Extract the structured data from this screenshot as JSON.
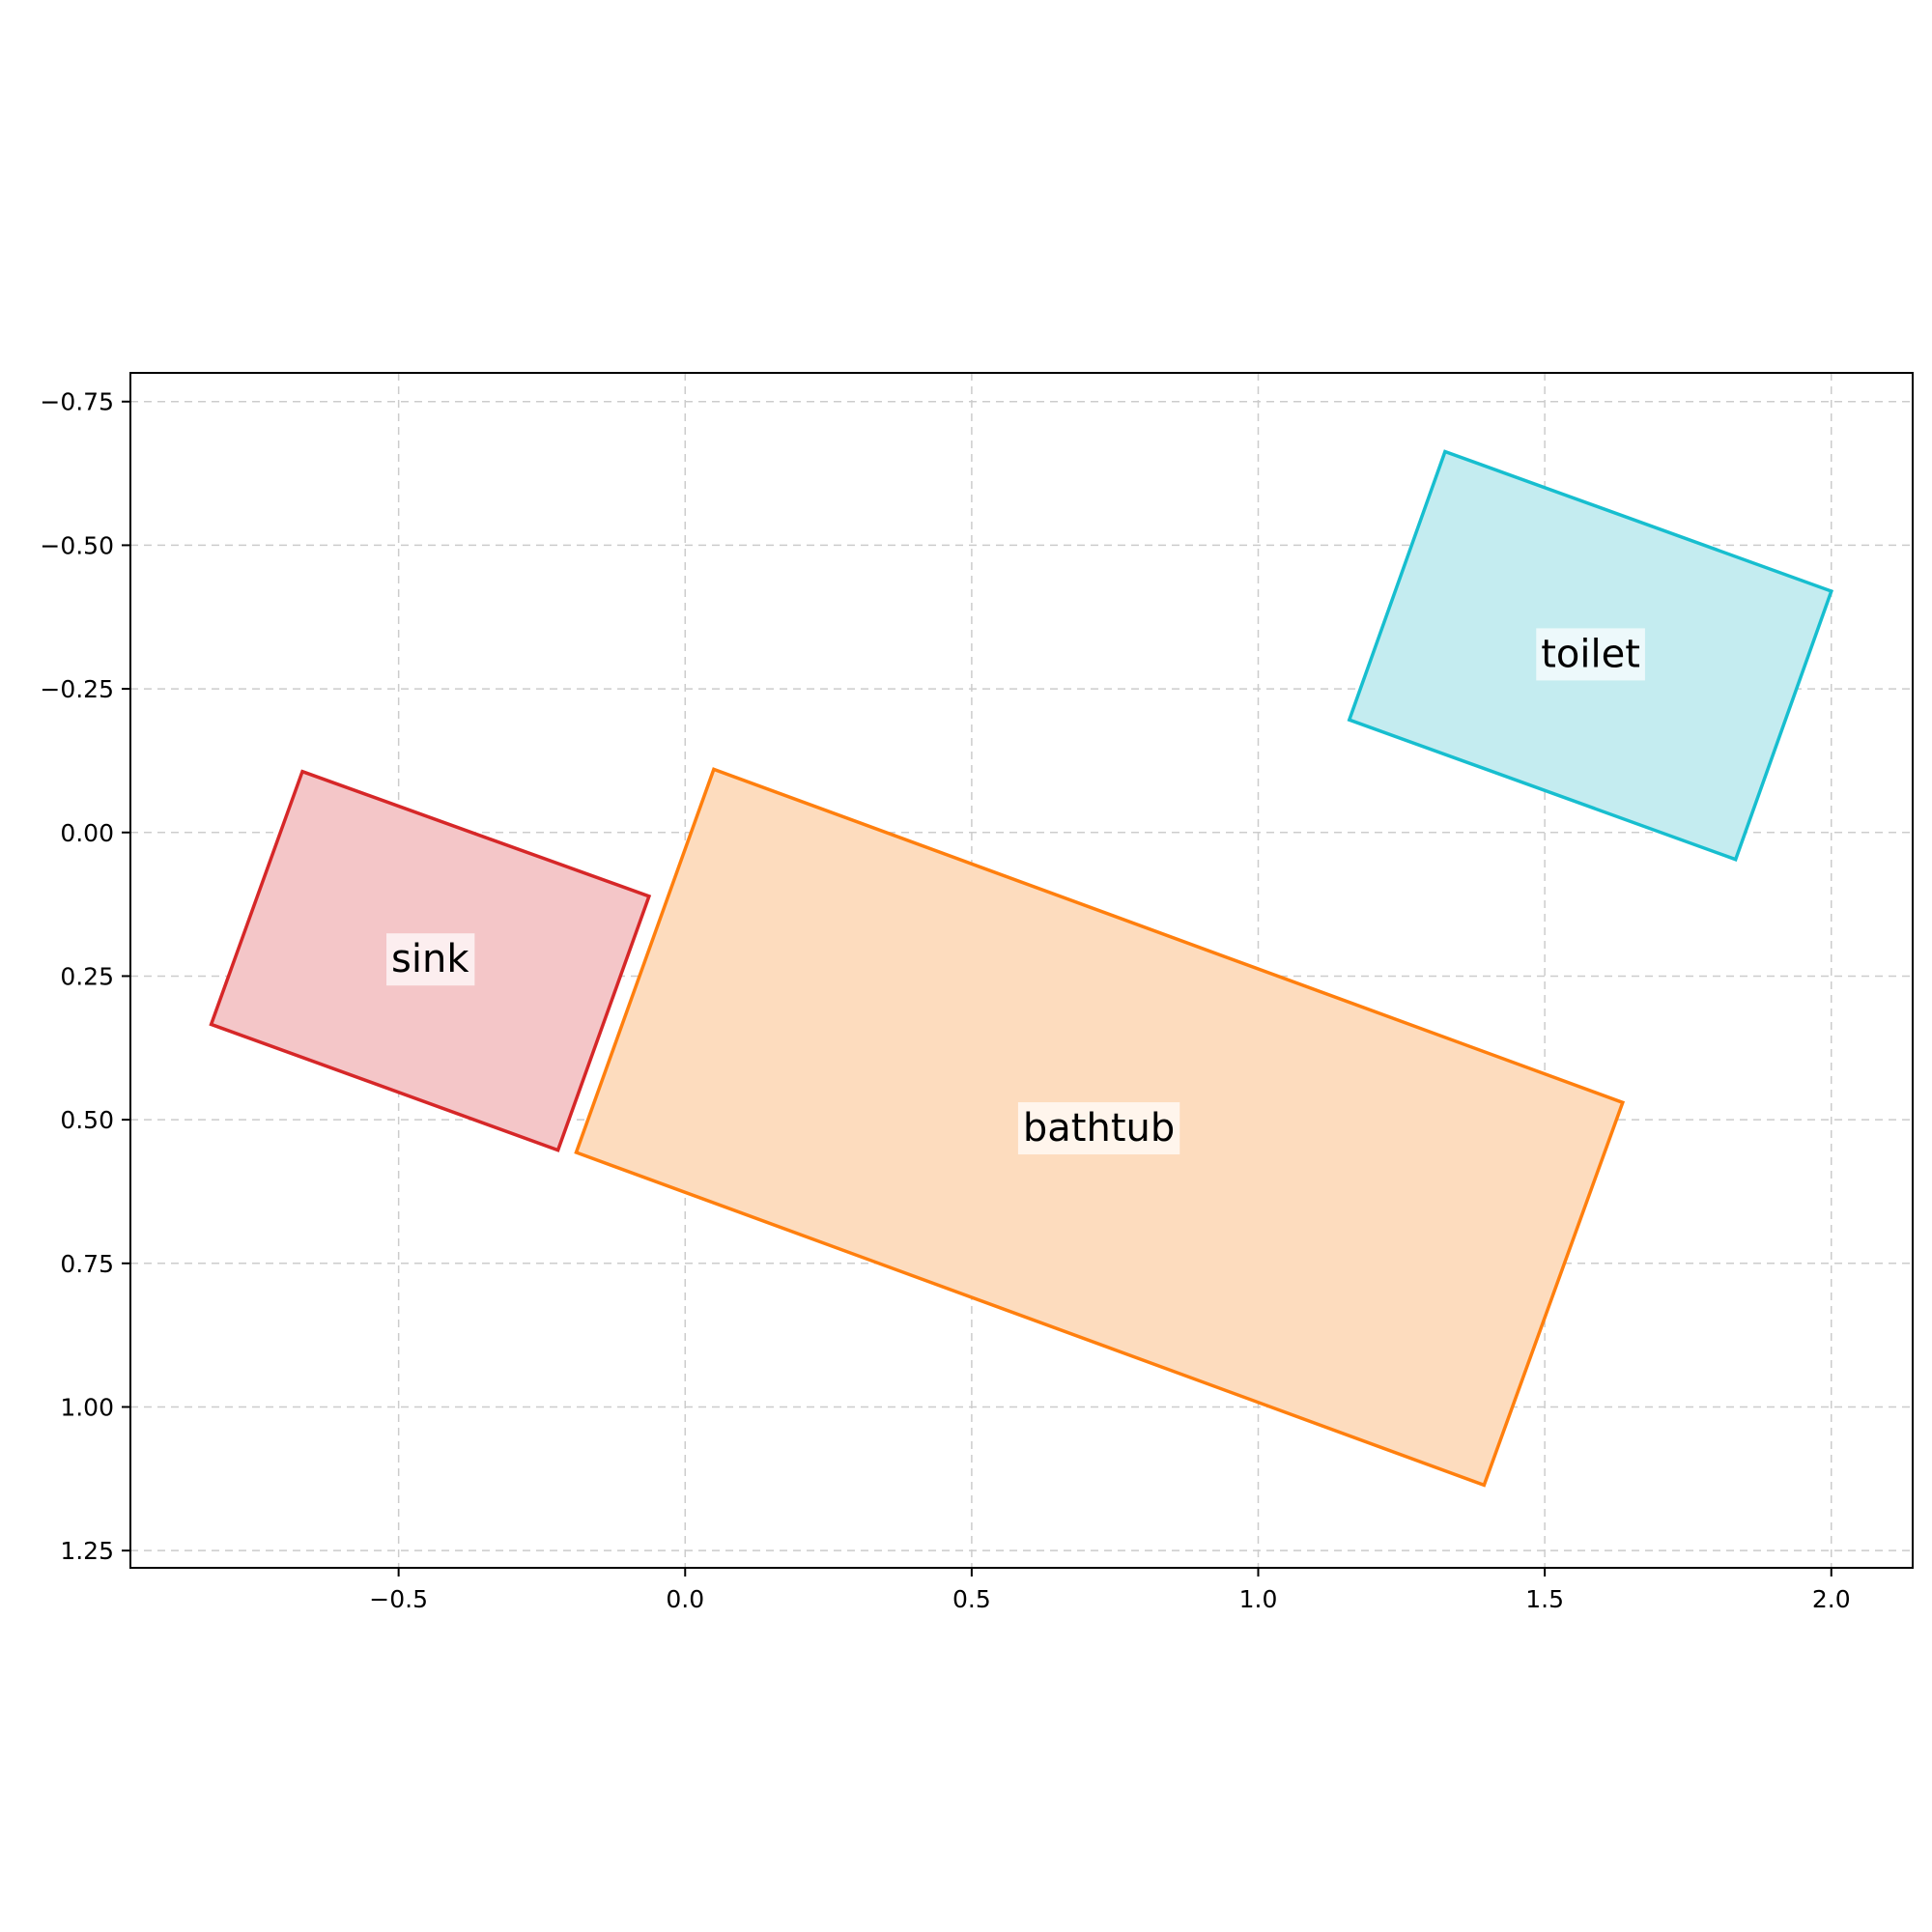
{
  "chart_data": {
    "type": "scatter",
    "title": "",
    "xlabel": "",
    "ylabel": "",
    "xlim": [
      -0.968,
      2.142
    ],
    "ylim": [
      1.28,
      -0.8
    ],
    "y_inverted": true,
    "grid": true,
    "x_ticks": [
      -0.5,
      0.0,
      0.5,
      1.0,
      1.5,
      2.0
    ],
    "x_tick_labels": [
      "−0.5",
      "0.0",
      "0.5",
      "1.0",
      "1.5",
      "2.0"
    ],
    "y_ticks": [
      -0.75,
      -0.5,
      -0.25,
      0.0,
      0.25,
      0.5,
      0.75,
      1.0,
      1.25
    ],
    "y_tick_labels": [
      "−0.75",
      "−0.50",
      "−0.25",
      "0.00",
      "0.25",
      "0.50",
      "0.75",
      "1.00",
      "1.25"
    ],
    "objects": [
      {
        "label": "sink",
        "color": "#d62728",
        "fill": "#f4c6c8",
        "corners": [
          [
            -0.668,
            -0.106
          ],
          [
            -0.063,
            0.111
          ],
          [
            -0.222,
            0.553
          ],
          [
            -0.827,
            0.334
          ]
        ],
        "label_at": [
          -0.445,
          0.221
        ]
      },
      {
        "label": "bathtub",
        "color": "#ff7f0e",
        "fill": "#fddcbe",
        "corners": [
          [
            0.05,
            -0.11
          ],
          [
            1.636,
            0.47
          ],
          [
            1.394,
            1.136
          ],
          [
            -0.19,
            0.557
          ]
        ],
        "label_at": [
          0.722,
          0.515
        ]
      },
      {
        "label": "toilet",
        "color": "#17becf",
        "fill": "#c4ecf0",
        "corners": [
          [
            1.326,
            -0.663
          ],
          [
            2.0,
            -0.42
          ],
          [
            1.833,
            0.047
          ],
          [
            1.159,
            -0.196
          ]
        ],
        "label_at": [
          1.58,
          -0.31
        ]
      }
    ]
  }
}
